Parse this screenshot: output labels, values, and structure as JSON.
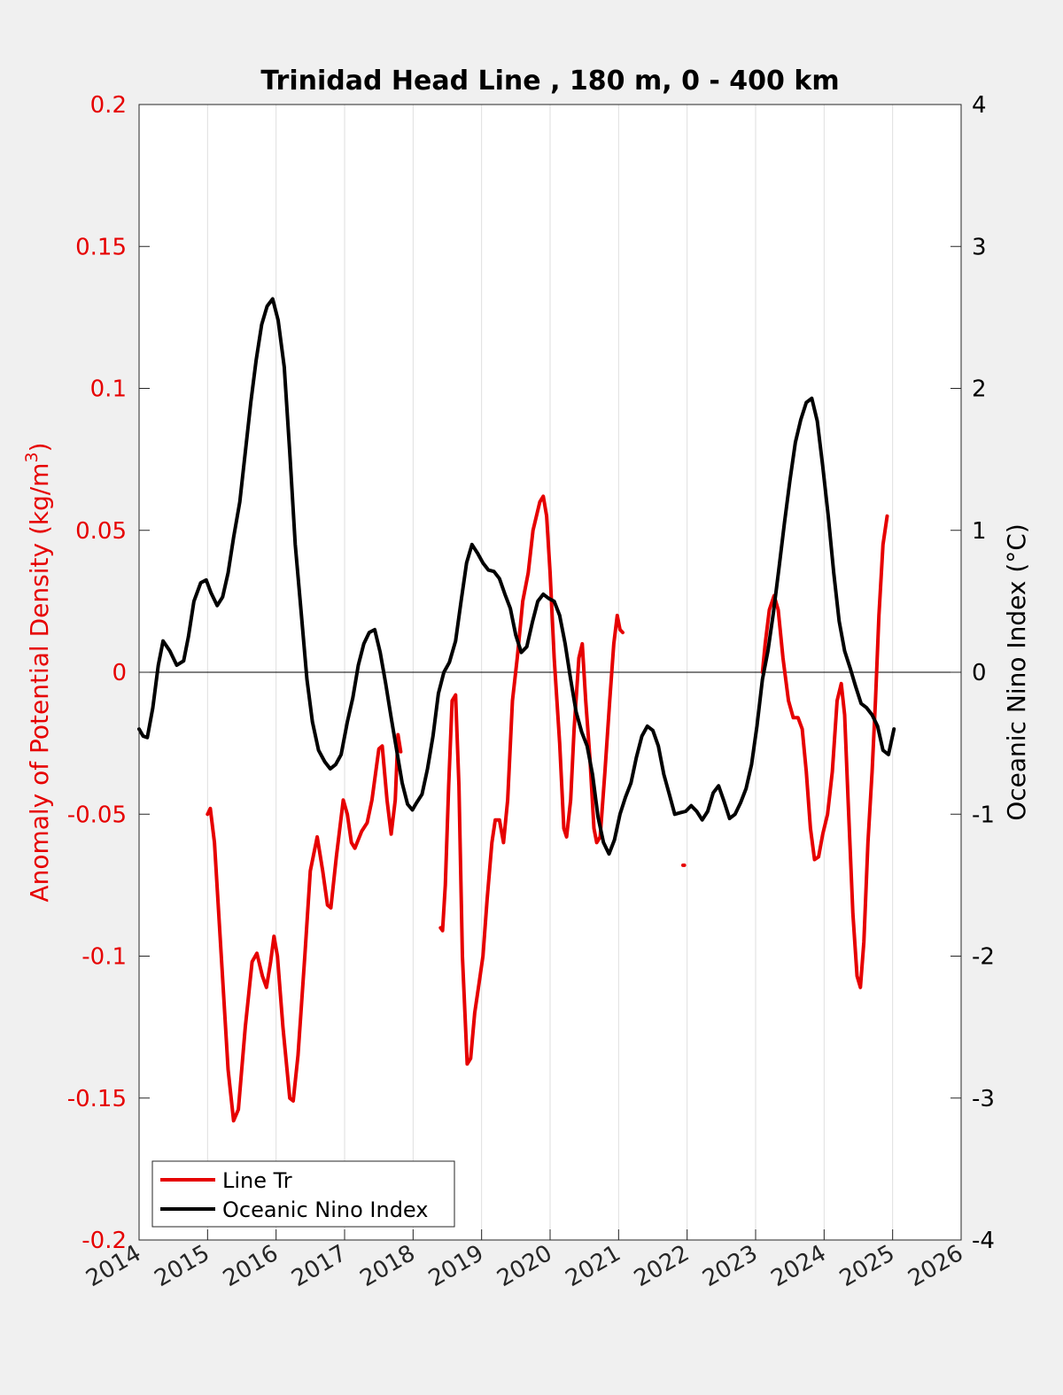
{
  "chart_data": {
    "type": "line",
    "title": "Trinidad Head Line , 180 m, 0 - 400 km",
    "xlabel": "",
    "ylabel_left": "Anomaly of Potential Density (kg/m³)",
    "ylabel_left_base": "Anomaly of Potential Density (kg/m",
    "ylabel_left_sup": "3",
    "ylabel_left_close": ")",
    "ylabel_right": "Oceanic Nino Index (°C)",
    "xlim": [
      2014,
      2026
    ],
    "ylim_left": [
      -0.2,
      0.2
    ],
    "ylim_right": [
      -4,
      4
    ],
    "x_ticks": [
      "2014",
      "2015",
      "2016",
      "2017",
      "2018",
      "2019",
      "2020",
      "2021",
      "2022",
      "2023",
      "2024",
      "2025",
      "2026"
    ],
    "y_ticks_left": [
      "0.2",
      "0.15",
      "0.1",
      "0.05",
      "0",
      "-0.05",
      "-0.1",
      "-0.15",
      "-0.2"
    ],
    "y_ticks_right": [
      "4",
      "3",
      "2",
      "1",
      "0",
      "-1",
      "-2",
      "-3",
      "-4"
    ],
    "grid": "vertical",
    "legend_location": "bottom-left",
    "colors": {
      "line_tr": "#e60000",
      "oni": "#000000",
      "left_axis": "#e60000",
      "right_axis": "#000000"
    },
    "series": [
      {
        "name": "Line Tr",
        "axis": "left",
        "segments": [
          [
            [
              2015.0,
              -0.05
            ],
            [
              2015.04,
              -0.048
            ],
            [
              2015.1,
              -0.06
            ],
            [
              2015.2,
              -0.1
            ],
            [
              2015.3,
              -0.14
            ],
            [
              2015.38,
              -0.158
            ],
            [
              2015.45,
              -0.154
            ],
            [
              2015.55,
              -0.125
            ],
            [
              2015.65,
              -0.102
            ],
            [
              2015.72,
              -0.099
            ],
            [
              2015.8,
              -0.107
            ],
            [
              2015.86,
              -0.111
            ],
            [
              2015.92,
              -0.102
            ],
            [
              2015.97,
              -0.093
            ],
            [
              2016.02,
              -0.1
            ],
            [
              2016.1,
              -0.125
            ],
            [
              2016.2,
              -0.15
            ],
            [
              2016.25,
              -0.151
            ],
            [
              2016.32,
              -0.135
            ],
            [
              2016.42,
              -0.1
            ],
            [
              2016.5,
              -0.07
            ],
            [
              2016.6,
              -0.058
            ],
            [
              2016.68,
              -0.07
            ],
            [
              2016.75,
              -0.082
            ],
            [
              2016.8,
              -0.083
            ],
            [
              2016.88,
              -0.065
            ],
            [
              2016.98,
              -0.045
            ],
            [
              2017.04,
              -0.05
            ],
            [
              2017.1,
              -0.06
            ],
            [
              2017.15,
              -0.062
            ],
            [
              2017.25,
              -0.056
            ],
            [
              2017.33,
              -0.053
            ],
            [
              2017.4,
              -0.045
            ],
            [
              2017.5,
              -0.027
            ],
            [
              2017.55,
              -0.026
            ],
            [
              2017.62,
              -0.045
            ],
            [
              2017.68,
              -0.057
            ],
            [
              2017.74,
              -0.045
            ],
            [
              2017.78,
              -0.022
            ],
            [
              2017.82,
              -0.028
            ]
          ],
          [
            [
              2018.4,
              -0.09
            ],
            [
              2018.43,
              -0.091
            ],
            [
              2018.47,
              -0.075
            ],
            [
              2018.52,
              -0.04
            ],
            [
              2018.57,
              -0.01
            ],
            [
              2018.62,
              -0.008
            ],
            [
              2018.67,
              -0.04
            ],
            [
              2018.72,
              -0.1
            ],
            [
              2018.79,
              -0.138
            ],
            [
              2018.84,
              -0.136
            ],
            [
              2018.9,
              -0.12
            ],
            [
              2018.96,
              -0.11
            ],
            [
              2019.02,
              -0.1
            ],
            [
              2019.08,
              -0.08
            ],
            [
              2019.15,
              -0.06
            ],
            [
              2019.2,
              -0.052
            ],
            [
              2019.26,
              -0.052
            ],
            [
              2019.32,
              -0.06
            ],
            [
              2019.38,
              -0.045
            ],
            [
              2019.45,
              -0.01
            ],
            [
              2019.52,
              0.005
            ],
            [
              2019.6,
              0.025
            ],
            [
              2019.68,
              0.035
            ],
            [
              2019.75,
              0.05
            ],
            [
              2019.85,
              0.06
            ],
            [
              2019.9,
              0.062
            ],
            [
              2019.95,
              0.055
            ],
            [
              2020.0,
              0.035
            ],
            [
              2020.06,
              0.005
            ],
            [
              2020.14,
              -0.025
            ],
            [
              2020.2,
              -0.055
            ],
            [
              2020.24,
              -0.058
            ],
            [
              2020.3,
              -0.045
            ],
            [
              2020.35,
              -0.02
            ],
            [
              2020.42,
              0.005
            ],
            [
              2020.47,
              0.01
            ],
            [
              2020.52,
              -0.01
            ],
            [
              2020.58,
              -0.03
            ],
            [
              2020.64,
              -0.055
            ],
            [
              2020.68,
              -0.06
            ],
            [
              2020.73,
              -0.058
            ],
            [
              2020.8,
              -0.035
            ],
            [
              2020.87,
              -0.01
            ],
            [
              2020.93,
              0.01
            ],
            [
              2020.98,
              0.02
            ],
            [
              2021.02,
              0.015
            ],
            [
              2021.06,
              0.014
            ]
          ],
          [
            [
              2021.94,
              -0.068
            ],
            [
              2021.96,
              -0.068
            ]
          ],
          [
            [
              2023.1,
              0.0
            ],
            [
              2023.14,
              0.01
            ],
            [
              2023.2,
              0.022
            ],
            [
              2023.27,
              0.027
            ],
            [
              2023.33,
              0.022
            ],
            [
              2023.4,
              0.005
            ],
            [
              2023.48,
              -0.01
            ],
            [
              2023.55,
              -0.016
            ],
            [
              2023.62,
              -0.016
            ],
            [
              2023.68,
              -0.02
            ],
            [
              2023.74,
              -0.035
            ],
            [
              2023.8,
              -0.055
            ],
            [
              2023.86,
              -0.066
            ],
            [
              2023.92,
              -0.065
            ],
            [
              2023.98,
              -0.057
            ],
            [
              2024.05,
              -0.05
            ],
            [
              2024.12,
              -0.035
            ],
            [
              2024.19,
              -0.01
            ],
            [
              2024.25,
              -0.004
            ],
            [
              2024.3,
              -0.015
            ],
            [
              2024.35,
              -0.045
            ],
            [
              2024.42,
              -0.085
            ],
            [
              2024.48,
              -0.107
            ],
            [
              2024.53,
              -0.111
            ],
            [
              2024.58,
              -0.095
            ],
            [
              2024.64,
              -0.06
            ],
            [
              2024.7,
              -0.035
            ],
            [
              2024.75,
              -0.01
            ],
            [
              2024.8,
              0.02
            ],
            [
              2024.86,
              0.045
            ],
            [
              2024.92,
              0.055
            ]
          ]
        ]
      },
      {
        "name": "Oceanic Nino Index",
        "axis": "right",
        "segments": [
          [
            [
              2014.0,
              -0.4
            ],
            [
              2014.06,
              -0.45
            ],
            [
              2014.12,
              -0.46
            ],
            [
              2014.2,
              -0.25
            ],
            [
              2014.28,
              0.05
            ],
            [
              2014.35,
              0.22
            ],
            [
              2014.45,
              0.15
            ],
            [
              2014.55,
              0.05
            ],
            [
              2014.65,
              0.08
            ],
            [
              2014.72,
              0.25
            ],
            [
              2014.8,
              0.5
            ],
            [
              2014.9,
              0.63
            ],
            [
              2014.98,
              0.65
            ],
            [
              2015.05,
              0.56
            ],
            [
              2015.14,
              0.47
            ],
            [
              2015.22,
              0.53
            ],
            [
              2015.3,
              0.7
            ],
            [
              2015.38,
              0.95
            ],
            [
              2015.47,
              1.2
            ],
            [
              2015.55,
              1.55
            ],
            [
              2015.63,
              1.9
            ],
            [
              2015.71,
              2.2
            ],
            [
              2015.79,
              2.45
            ],
            [
              2015.87,
              2.58
            ],
            [
              2015.95,
              2.63
            ],
            [
              2016.03,
              2.48
            ],
            [
              2016.12,
              2.15
            ],
            [
              2016.2,
              1.55
            ],
            [
              2016.28,
              0.9
            ],
            [
              2016.37,
              0.4
            ],
            [
              2016.45,
              -0.05
            ],
            [
              2016.53,
              -0.35
            ],
            [
              2016.62,
              -0.55
            ],
            [
              2016.71,
              -0.63
            ],
            [
              2016.79,
              -0.68
            ],
            [
              2016.87,
              -0.65
            ],
            [
              2016.95,
              -0.58
            ],
            [
              2017.04,
              -0.35
            ],
            [
              2017.12,
              -0.18
            ],
            [
              2017.2,
              0.05
            ],
            [
              2017.28,
              0.2
            ],
            [
              2017.36,
              0.28
            ],
            [
              2017.44,
              0.3
            ],
            [
              2017.52,
              0.14
            ],
            [
              2017.6,
              -0.08
            ],
            [
              2017.68,
              -0.32
            ],
            [
              2017.76,
              -0.55
            ],
            [
              2017.84,
              -0.78
            ],
            [
              2017.92,
              -0.93
            ],
            [
              2017.99,
              -0.97
            ],
            [
              2018.05,
              -0.92
            ],
            [
              2018.13,
              -0.86
            ],
            [
              2018.21,
              -0.68
            ],
            [
              2018.29,
              -0.45
            ],
            [
              2018.37,
              -0.15
            ],
            [
              2018.45,
              0.0
            ],
            [
              2018.53,
              0.07
            ],
            [
              2018.62,
              0.22
            ],
            [
              2018.7,
              0.5
            ],
            [
              2018.78,
              0.77
            ],
            [
              2018.86,
              0.9
            ],
            [
              2018.94,
              0.84
            ],
            [
              2019.02,
              0.77
            ],
            [
              2019.1,
              0.72
            ],
            [
              2019.18,
              0.71
            ],
            [
              2019.26,
              0.66
            ],
            [
              2019.34,
              0.55
            ],
            [
              2019.42,
              0.45
            ],
            [
              2019.5,
              0.26
            ],
            [
              2019.58,
              0.14
            ],
            [
              2019.66,
              0.18
            ],
            [
              2019.74,
              0.35
            ],
            [
              2019.82,
              0.5
            ],
            [
              2019.9,
              0.55
            ],
            [
              2019.98,
              0.52
            ],
            [
              2020.06,
              0.5
            ],
            [
              2020.14,
              0.4
            ],
            [
              2020.22,
              0.2
            ],
            [
              2020.3,
              -0.05
            ],
            [
              2020.38,
              -0.28
            ],
            [
              2020.46,
              -0.42
            ],
            [
              2020.54,
              -0.52
            ],
            [
              2020.62,
              -0.72
            ],
            [
              2020.7,
              -1.02
            ],
            [
              2020.78,
              -1.2
            ],
            [
              2020.86,
              -1.28
            ],
            [
              2020.94,
              -1.18
            ],
            [
              2021.02,
              -1.0
            ],
            [
              2021.1,
              -0.88
            ],
            [
              2021.18,
              -0.78
            ],
            [
              2021.26,
              -0.6
            ],
            [
              2021.34,
              -0.45
            ],
            [
              2021.42,
              -0.38
            ],
            [
              2021.5,
              -0.41
            ],
            [
              2021.58,
              -0.52
            ],
            [
              2021.66,
              -0.72
            ],
            [
              2021.74,
              -0.86
            ],
            [
              2021.82,
              -1.0
            ],
            [
              2021.9,
              -0.99
            ],
            [
              2021.98,
              -0.98
            ],
            [
              2022.06,
              -0.94
            ],
            [
              2022.14,
              -0.98
            ],
            [
              2022.22,
              -1.04
            ],
            [
              2022.3,
              -0.98
            ],
            [
              2022.38,
              -0.85
            ],
            [
              2022.46,
              -0.8
            ],
            [
              2022.54,
              -0.91
            ],
            [
              2022.62,
              -1.03
            ],
            [
              2022.7,
              -1.0
            ],
            [
              2022.78,
              -0.92
            ],
            [
              2022.86,
              -0.82
            ],
            [
              2022.94,
              -0.65
            ],
            [
              2023.02,
              -0.38
            ],
            [
              2023.1,
              -0.05
            ],
            [
              2023.18,
              0.15
            ],
            [
              2023.26,
              0.42
            ],
            [
              2023.34,
              0.73
            ],
            [
              2023.42,
              1.05
            ],
            [
              2023.5,
              1.35
            ],
            [
              2023.58,
              1.62
            ],
            [
              2023.66,
              1.78
            ],
            [
              2023.74,
              1.9
            ],
            [
              2023.82,
              1.93
            ],
            [
              2023.9,
              1.77
            ],
            [
              2023.98,
              1.45
            ],
            [
              2024.06,
              1.1
            ],
            [
              2024.14,
              0.7
            ],
            [
              2024.22,
              0.36
            ],
            [
              2024.3,
              0.15
            ],
            [
              2024.38,
              0.03
            ],
            [
              2024.46,
              -0.1
            ],
            [
              2024.54,
              -0.22
            ],
            [
              2024.62,
              -0.25
            ],
            [
              2024.7,
              -0.3
            ],
            [
              2024.78,
              -0.38
            ],
            [
              2024.86,
              -0.55
            ],
            [
              2024.94,
              -0.58
            ],
            [
              2025.02,
              -0.4
            ]
          ]
        ]
      }
    ]
  }
}
